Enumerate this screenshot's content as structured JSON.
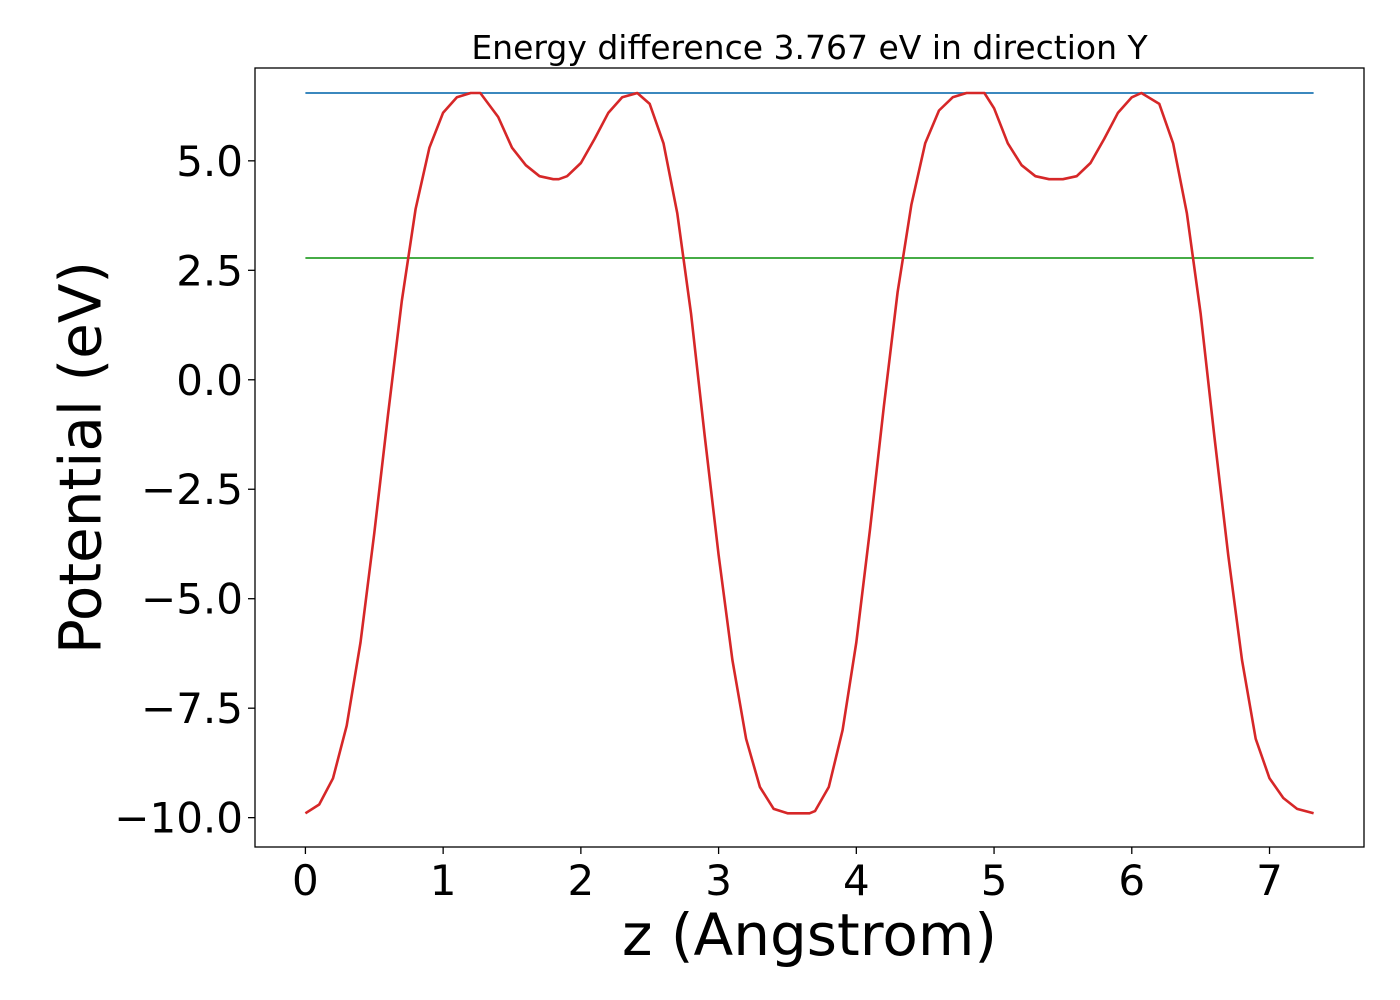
{
  "chart_data": {
    "type": "line",
    "title": "Energy difference 3.767 eV in direction Y",
    "xlabel": "z (Angstrom)",
    "ylabel": "Potential (eV)",
    "xlim": [
      -0.366,
      7.686
    ],
    "ylim": [
      -10.67,
      7.12
    ],
    "xticks": [
      0,
      1,
      2,
      3,
      4,
      5,
      6,
      7
    ],
    "xtick_labels": [
      "0",
      "1",
      "2",
      "3",
      "4",
      "5",
      "6",
      "7"
    ],
    "yticks": [
      -10.0,
      -7.5,
      -5.0,
      -2.5,
      0.0,
      2.5,
      5.0
    ],
    "ytick_labels": [
      "−10.0",
      "−7.5",
      "−5.0",
      "−2.5",
      "0.0",
      "2.5",
      "5.0"
    ],
    "grid": false,
    "legend": "none",
    "series": [
      {
        "color": "#1f77b4",
        "x": [
          0.0,
          7.32
        ],
        "y": [
          6.55,
          6.55
        ]
      },
      {
        "color": "#2ca02c",
        "x": [
          0.0,
          7.32
        ],
        "y": [
          2.78,
          2.78
        ]
      },
      {
        "color": "#d62728",
        "x": [
          0.0,
          0.1,
          0.2,
          0.3,
          0.4,
          0.5,
          0.6,
          0.7,
          0.8,
          0.9,
          1.0,
          1.1,
          1.2,
          1.27,
          1.4,
          1.5,
          1.6,
          1.7,
          1.8,
          1.84,
          1.9,
          2.0,
          2.1,
          2.2,
          2.3,
          2.41,
          2.5,
          2.6,
          2.7,
          2.8,
          2.9,
          3.0,
          3.1,
          3.2,
          3.3,
          3.4,
          3.5,
          3.6,
          3.66,
          3.7,
          3.8,
          3.9,
          4.0,
          4.1,
          4.2,
          4.3,
          4.4,
          4.5,
          4.6,
          4.7,
          4.8,
          4.93,
          5.0,
          5.1,
          5.2,
          5.3,
          5.4,
          5.5,
          5.6,
          5.7,
          5.8,
          5.9,
          6.0,
          6.07,
          6.2,
          6.3,
          6.4,
          6.5,
          6.6,
          6.7,
          6.8,
          6.9,
          7.0,
          7.1,
          7.2,
          7.32
        ],
        "y": [
          -9.9,
          -9.7,
          -9.1,
          -7.9,
          -6.0,
          -3.5,
          -0.8,
          1.8,
          3.9,
          5.3,
          6.1,
          6.45,
          6.55,
          6.55,
          6.0,
          5.3,
          4.9,
          4.65,
          4.58,
          4.58,
          4.65,
          4.95,
          5.5,
          6.1,
          6.45,
          6.55,
          6.3,
          5.4,
          3.8,
          1.5,
          -1.3,
          -4.0,
          -6.4,
          -8.2,
          -9.3,
          -9.8,
          -9.9,
          -9.9,
          -9.9,
          -9.85,
          -9.3,
          -8.0,
          -6.0,
          -3.4,
          -0.6,
          2.0,
          4.0,
          5.4,
          6.15,
          6.45,
          6.55,
          6.55,
          6.2,
          5.4,
          4.9,
          4.65,
          4.58,
          4.58,
          4.65,
          4.95,
          5.5,
          6.1,
          6.45,
          6.55,
          6.3,
          5.4,
          3.8,
          1.5,
          -1.3,
          -4.0,
          -6.4,
          -8.2,
          -9.1,
          -9.55,
          -9.8,
          -9.9
        ]
      }
    ]
  }
}
